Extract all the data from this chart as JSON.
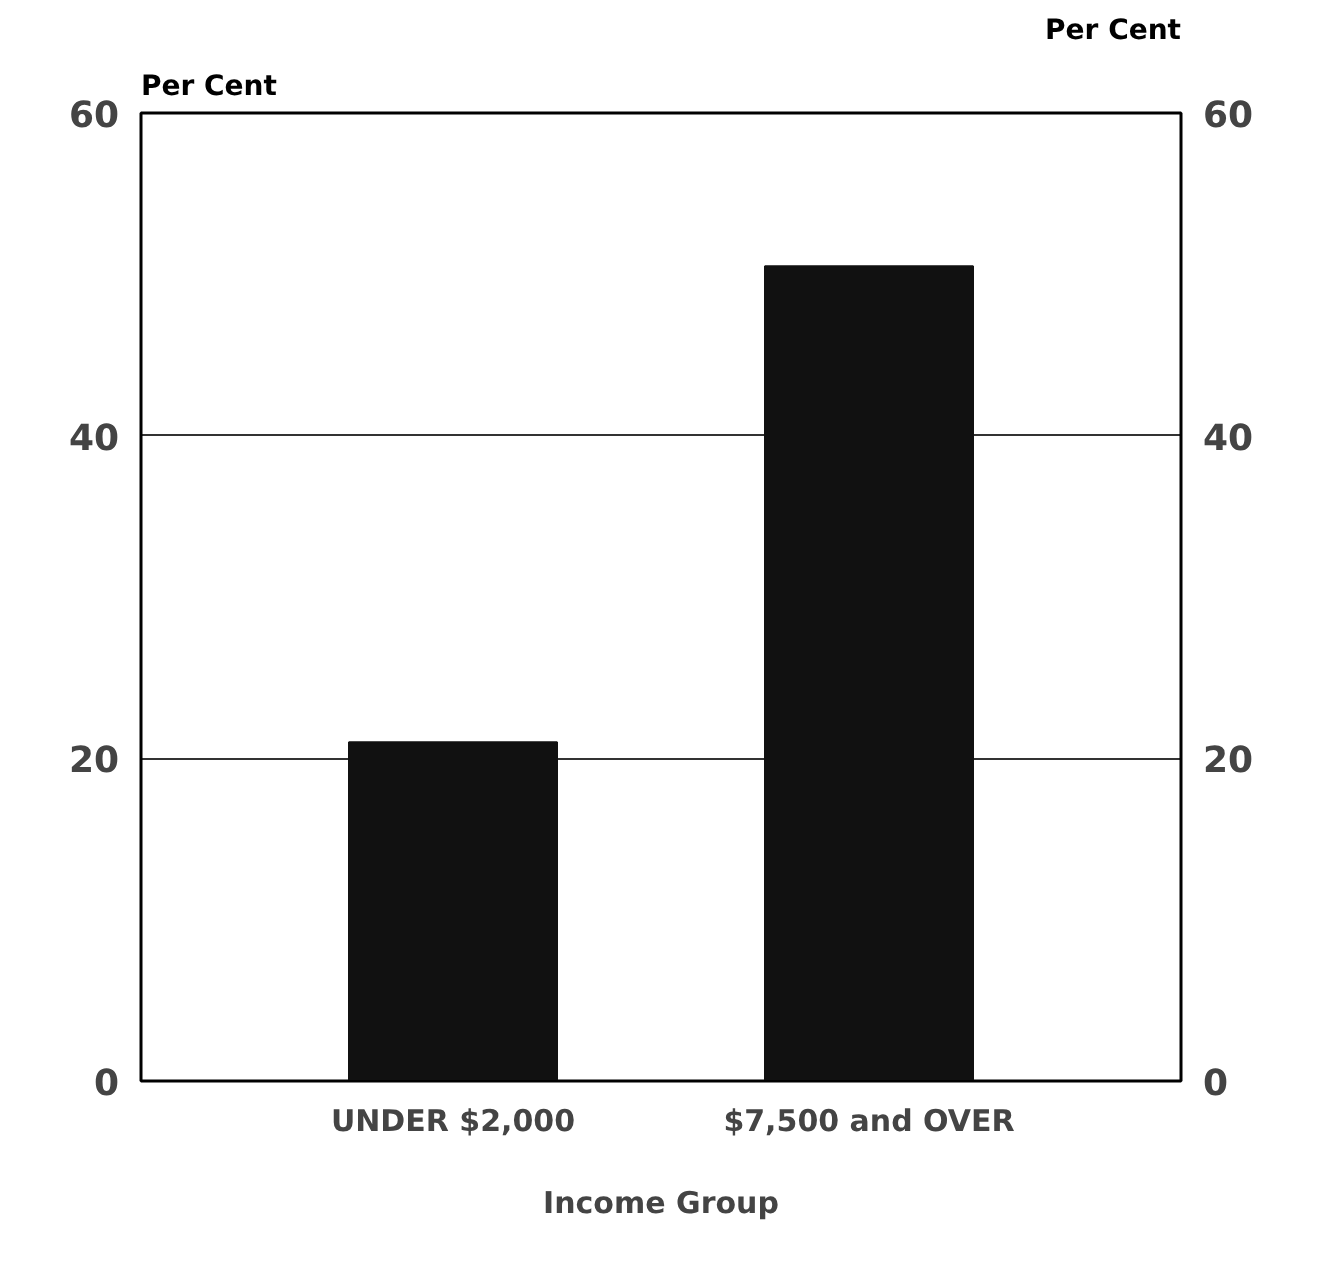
{
  "chart_data": {
    "type": "bar",
    "categories": [
      "UNDER $2,000",
      "$7,500 and OVER"
    ],
    "values": [
      21,
      50.5
    ],
    "color": "#111111",
    "xlabel": "Income Group",
    "ylabel": "Per Cent",
    "y2label": "Per Cent",
    "ylim": [
      0,
      60
    ],
    "yticks": [
      0,
      20,
      40,
      60
    ],
    "y2lim": [
      0,
      60
    ],
    "y2ticks": [
      0,
      20,
      40,
      60
    ],
    "grid": "y"
  }
}
